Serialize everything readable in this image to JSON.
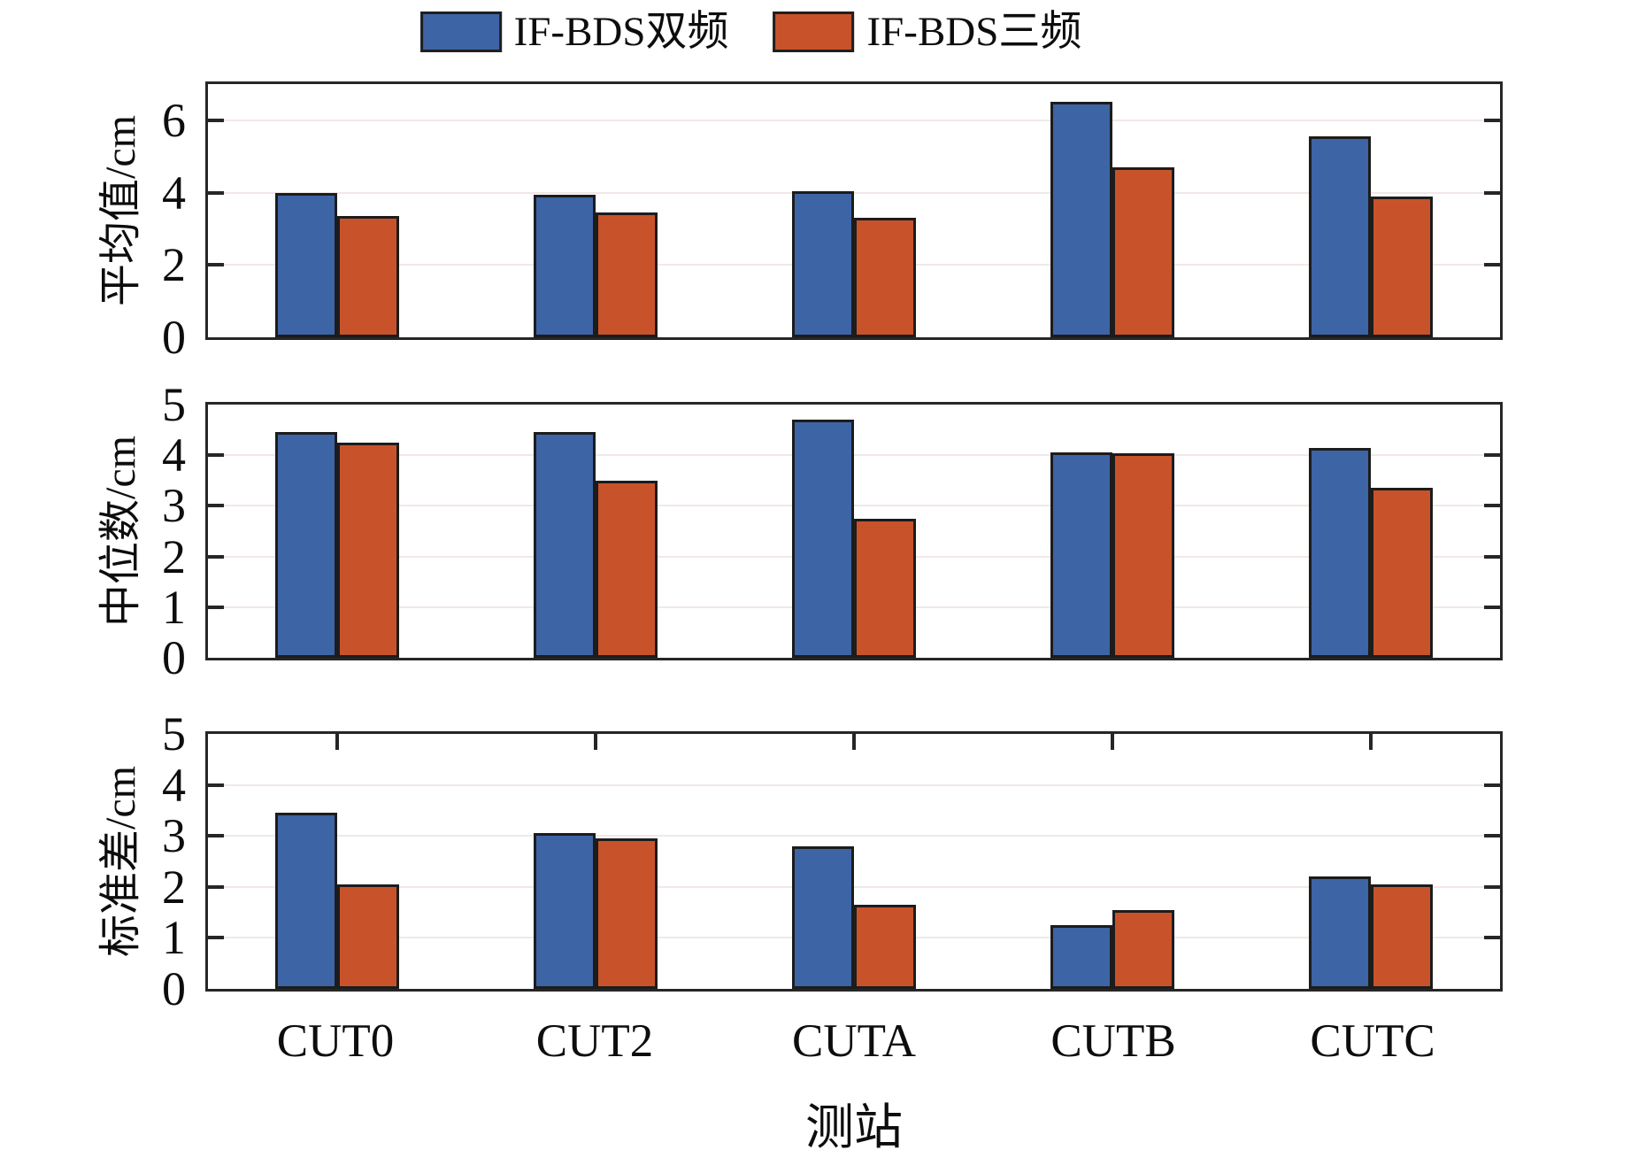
{
  "legend": [
    {
      "label": "IF-BDS双频",
      "color": "#3d64a5"
    },
    {
      "label": "IF-BDS三频",
      "color": "#c8532b"
    }
  ],
  "xlabel": "测站",
  "categories": [
    "CUT0",
    "CUT2",
    "CUTA",
    "CUTB",
    "CUTC"
  ],
  "colors": {
    "dual_freq_blue": "#3d64a5",
    "triple_freq_orange": "#c8532b",
    "axis_border": "#262626",
    "gridline": "#f1e8e6"
  },
  "chart_data": [
    {
      "type": "bar",
      "title": "",
      "ylabel": "平均值/cm",
      "xlabel": "测站",
      "categories": [
        "CUT0",
        "CUT2",
        "CUTA",
        "CUTB",
        "CUTC"
      ],
      "ylim": [
        0,
        7
      ],
      "yticks": [
        0,
        2,
        4,
        6
      ],
      "grid": true,
      "legend_position": "top-center",
      "series": [
        {
          "name": "IF-BDS双频",
          "color": "#3d64a5",
          "values": [
            4.0,
            3.95,
            4.05,
            6.5,
            5.55
          ]
        },
        {
          "name": "IF-BDS三频",
          "color": "#c8532b",
          "values": [
            3.35,
            3.45,
            3.3,
            4.7,
            3.9
          ]
        }
      ]
    },
    {
      "type": "bar",
      "title": "",
      "ylabel": "中位数/cm",
      "xlabel": "测站",
      "categories": [
        "CUT0",
        "CUT2",
        "CUTA",
        "CUTB",
        "CUTC"
      ],
      "ylim": [
        0,
        5
      ],
      "yticks": [
        0,
        1,
        2,
        3,
        4,
        5
      ],
      "grid": true,
      "legend_position": "none",
      "series": [
        {
          "name": "IF-BDS双频",
          "color": "#3d64a5",
          "values": [
            4.45,
            4.45,
            4.7,
            4.05,
            4.15
          ]
        },
        {
          "name": "IF-BDS三频",
          "color": "#c8532b",
          "values": [
            4.25,
            3.5,
            2.75,
            4.03,
            3.35
          ]
        }
      ]
    },
    {
      "type": "bar",
      "title": "",
      "ylabel": "标准差/cm",
      "xlabel": "测站",
      "categories": [
        "CUT0",
        "CUT2",
        "CUTA",
        "CUTB",
        "CUTC"
      ],
      "ylim": [
        0,
        5
      ],
      "yticks": [
        0,
        1,
        2,
        3,
        4,
        5
      ],
      "grid": true,
      "legend_position": "none",
      "series": [
        {
          "name": "IF-BDS双频",
          "color": "#3d64a5",
          "values": [
            3.45,
            3.05,
            2.8,
            1.25,
            2.2
          ]
        },
        {
          "name": "IF-BDS三频",
          "color": "#c8532b",
          "values": [
            2.05,
            2.95,
            1.65,
            1.55,
            2.05
          ]
        }
      ]
    }
  ]
}
